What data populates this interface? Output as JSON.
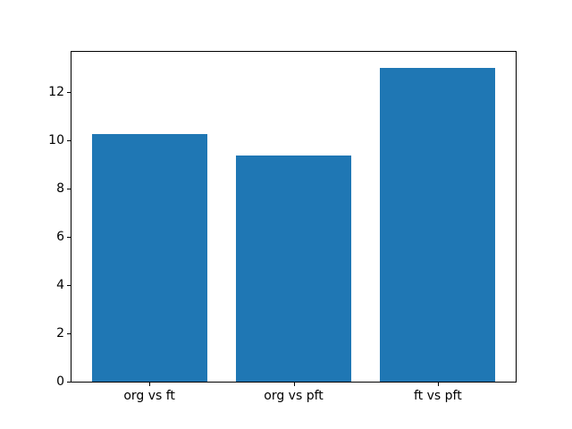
{
  "figure": {
    "background": "#ffffff",
    "spine_color": "#000000",
    "tick_color": "#000000"
  },
  "chart_data": {
    "type": "bar",
    "categories": [
      "org vs ft",
      "org vs pft",
      "ft vs pft"
    ],
    "values": [
      10.25,
      9.35,
      13.0
    ],
    "title": "",
    "xlabel": "",
    "ylabel": "",
    "ylim": [
      0,
      13.65
    ],
    "xlim": [
      -0.54,
      2.54
    ],
    "yticks": [
      0,
      2,
      4,
      6,
      8,
      10,
      12
    ],
    "bar_width_data_units": 0.8,
    "bar_color": "#1f77b4",
    "grid": false,
    "legend": null
  }
}
